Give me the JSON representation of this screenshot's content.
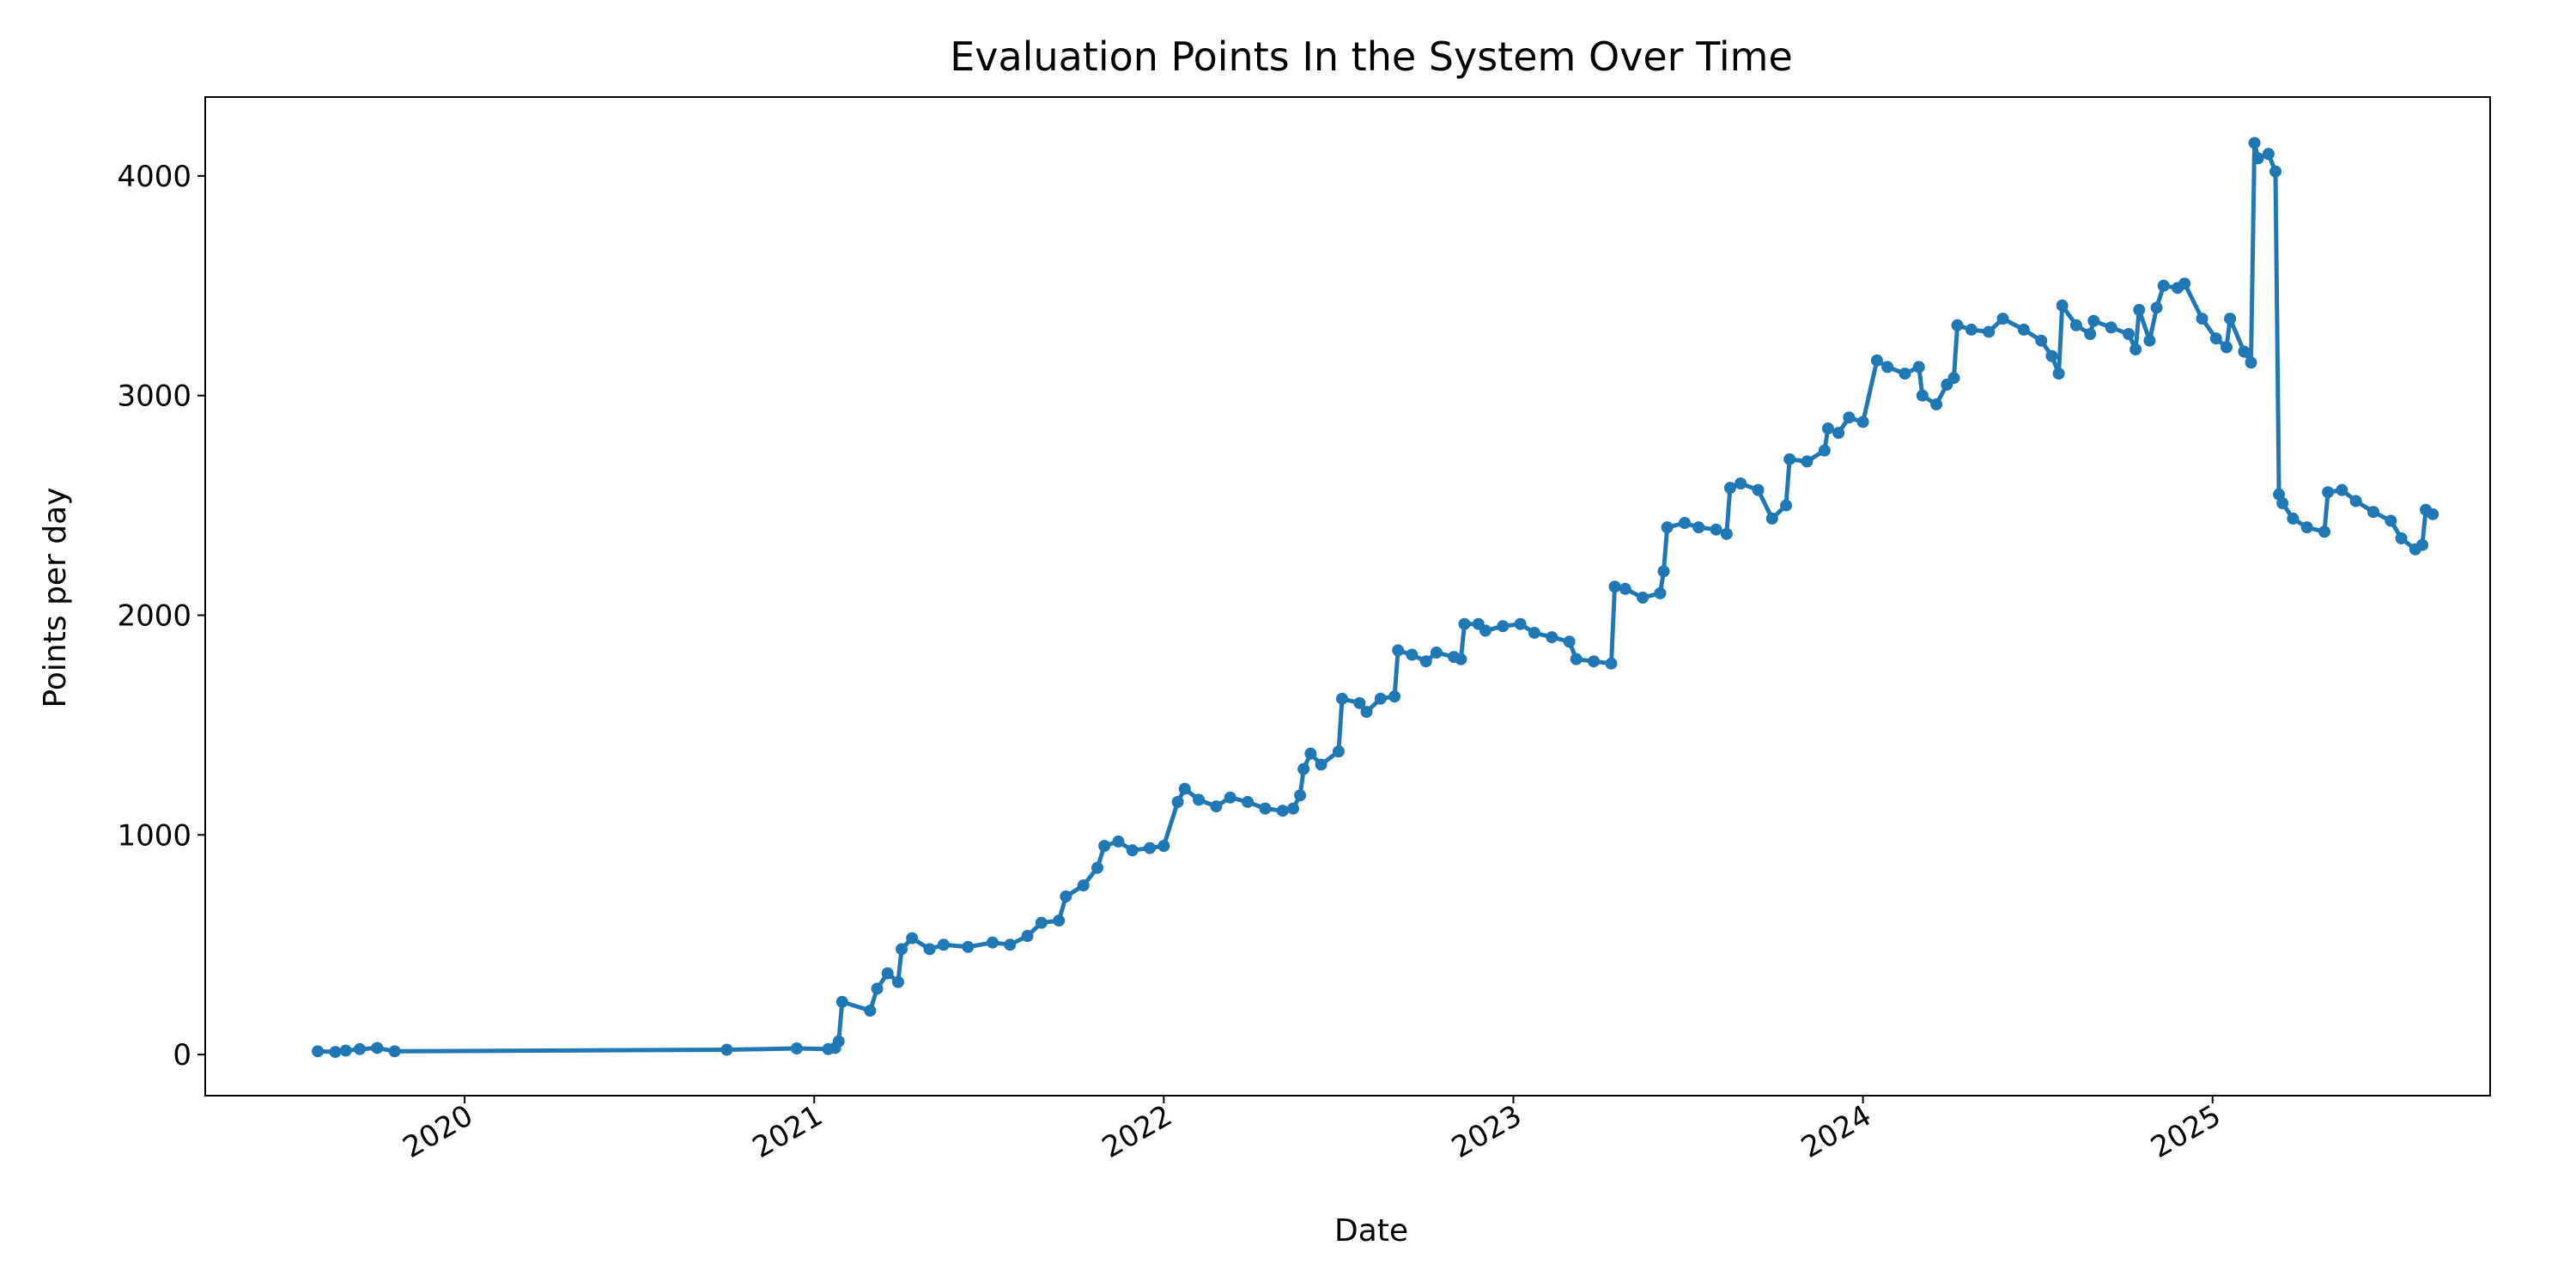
{
  "chart_data": {
    "type": "line",
    "title": "Evaluation Points In the System Over Time",
    "x_label": "Date",
    "y_label": "Points per day",
    "color": "#1f77b4",
    "markers": true,
    "grid": false,
    "x": [
      2019.58,
      2019.63,
      2019.66,
      2019.7,
      2019.75,
      2019.8,
      2020.75,
      2020.95,
      2021.04,
      2021.06,
      2021.07,
      2021.08,
      2021.16,
      2021.18,
      2021.21,
      2021.24,
      2021.25,
      2021.28,
      2021.33,
      2021.37,
      2021.44,
      2021.51,
      2021.56,
      2021.61,
      2021.65,
      2021.7,
      2021.72,
      2021.77,
      2021.81,
      2021.83,
      2021.87,
      2021.91,
      2021.96,
      2022.0,
      2022.04,
      2022.06,
      2022.1,
      2022.15,
      2022.19,
      2022.24,
      2022.29,
      2022.34,
      2022.37,
      2022.39,
      2022.4,
      2022.42,
      2022.45,
      2022.5,
      2022.51,
      2022.56,
      2022.58,
      2022.62,
      2022.66,
      2022.67,
      2022.71,
      2022.75,
      2022.78,
      2022.83,
      2022.85,
      2022.86,
      2022.9,
      2022.92,
      2022.97,
      2023.02,
      2023.06,
      2023.11,
      2023.16,
      2023.18,
      2023.23,
      2023.28,
      2023.29,
      2023.32,
      2023.37,
      2023.42,
      2023.43,
      2023.44,
      2023.49,
      2023.53,
      2023.58,
      2023.61,
      2023.62,
      2023.65,
      2023.7,
      2023.74,
      2023.78,
      2023.79,
      2023.84,
      2023.89,
      2023.9,
      2023.93,
      2023.96,
      2024.0,
      2024.04,
      2024.07,
      2024.12,
      2024.16,
      2024.17,
      2024.21,
      2024.24,
      2024.26,
      2024.27,
      2024.31,
      2024.36,
      2024.4,
      2024.46,
      2024.51,
      2024.54,
      2024.56,
      2024.57,
      2024.61,
      2024.65,
      2024.66,
      2024.71,
      2024.76,
      2024.78,
      2024.79,
      2024.82,
      2024.84,
      2024.86,
      2024.9,
      2024.92,
      2024.97,
      2025.01,
      2025.04,
      2025.05,
      2025.09,
      2025.11,
      2025.12,
      2025.13,
      2025.16,
      2025.18,
      2025.19,
      2025.2,
      2025.23,
      2025.27,
      2025.32,
      2025.33,
      2025.37,
      2025.41,
      2025.46,
      2025.51,
      2025.54,
      2025.58,
      2025.6,
      2025.61,
      2025.63
    ],
    "values": [
      15,
      12,
      18,
      25,
      30,
      15,
      22,
      28,
      25,
      30,
      60,
      240,
      200,
      300,
      370,
      330,
      480,
      530,
      480,
      500,
      490,
      510,
      500,
      540,
      600,
      610,
      720,
      770,
      850,
      950,
      970,
      930,
      940,
      950,
      1150,
      1210,
      1160,
      1130,
      1170,
      1150,
      1120,
      1110,
      1120,
      1180,
      1300,
      1370,
      1320,
      1380,
      1620,
      1600,
      1560,
      1620,
      1630,
      1840,
      1820,
      1790,
      1830,
      1810,
      1800,
      1960,
      1960,
      1930,
      1950,
      1960,
      1920,
      1900,
      1880,
      1800,
      1790,
      1780,
      2130,
      2120,
      2080,
      2100,
      2200,
      2400,
      2420,
      2400,
      2390,
      2370,
      2580,
      2600,
      2570,
      2440,
      2500,
      2710,
      2700,
      2750,
      2850,
      2830,
      2900,
      2880,
      3160,
      3130,
      3100,
      3130,
      3000,
      2960,
      3050,
      3080,
      3320,
      3300,
      3290,
      3350,
      3300,
      3250,
      3180,
      3100,
      3410,
      3320,
      3280,
      3340,
      3310,
      3280,
      3210,
      3390,
      3250,
      3400,
      3500,
      3490,
      3510,
      3350,
      3260,
      3220,
      3350,
      3200,
      3150,
      4150,
      4080,
      4100,
      4020,
      2550,
      2510,
      2440,
      2400,
      2380,
      2560,
      2570,
      2520,
      2470,
      2430,
      2350,
      2300,
      2320,
      2480,
      2460
    ],
    "xlim": [
      2019.258,
      2025.794
    ],
    "xticks": [
      2020,
      2021,
      2022,
      2023,
      2024,
      2025
    ],
    "ylim": [
      -187,
      4359
    ],
    "yticks": [
      0,
      1000,
      2000,
      3000,
      4000
    ]
  }
}
